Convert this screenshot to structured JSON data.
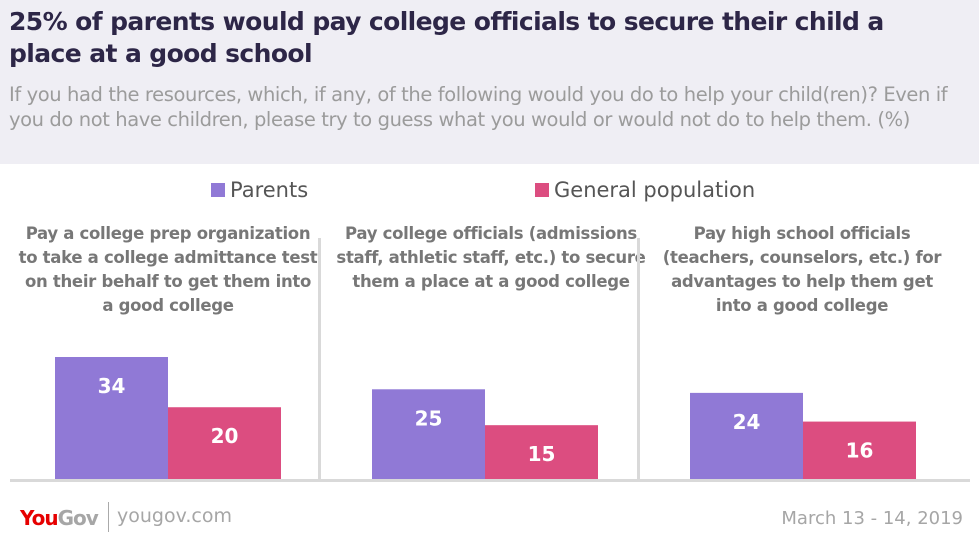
{
  "header": {
    "title": "25% of parents would pay college officials to secure their child a place at a good school",
    "subtitle": "If you had the resources, which, if any, of the following would you do to help your child(ren)? Even if you do not have children, please try to guess what you would or would not do to help them.  (%)"
  },
  "legend": {
    "items": [
      {
        "label": "Parents",
        "color": "#9079d6"
      },
      {
        "label": "General population",
        "color": "#dc4d80"
      }
    ]
  },
  "footer": {
    "logo_you": "You",
    "logo_gov": "Gov",
    "url": "yougov.com",
    "date": "March 13 - 14, 2019"
  },
  "chart_data": {
    "type": "bar",
    "title": "25% of parents would pay college officials to secure their child a place at a good school",
    "subtitle": "If you had the resources, which, if any, of the following would you do to help your child(ren)? Even if you do not have children, please try to guess what you would or would not do to help them.  (%)",
    "categories": [
      "Pay a college prep organization to take a college admittance test on their behalf to get them into a good college",
      "Pay college officials (admissions staff, athletic staff, etc.) to secure them a place at a good college",
      "Pay high school officials (teachers, counselors, etc.) for advantages to help them get into a good college"
    ],
    "series": [
      {
        "name": "Parents",
        "color": "#9079d6",
        "values": [
          34,
          25,
          24
        ]
      },
      {
        "name": "General population",
        "color": "#dc4d80",
        "values": [
          20,
          15,
          16
        ]
      }
    ],
    "xlabel": "",
    "ylabel": "%",
    "ylim": [
      0,
      34
    ],
    "grid": false,
    "legend_position": "top",
    "data_labels": true
  }
}
